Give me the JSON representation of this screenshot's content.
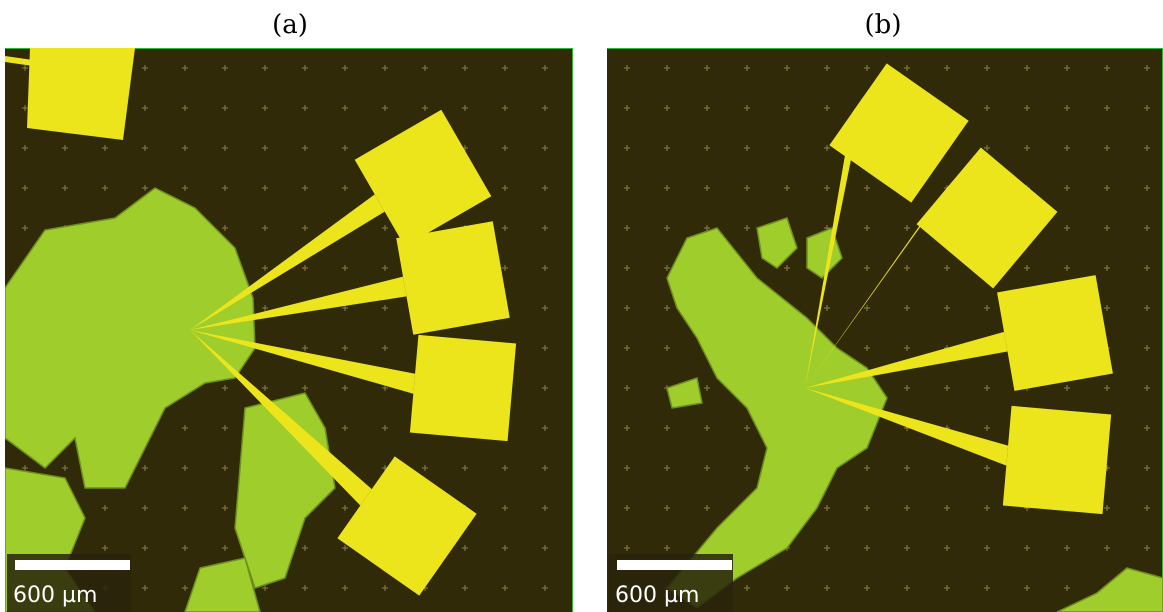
{
  "panels": [
    {
      "label": "(a)",
      "scale_bar": "600 µm"
    },
    {
      "label": "(b)",
      "scale_bar": "600 µm"
    }
  ]
}
